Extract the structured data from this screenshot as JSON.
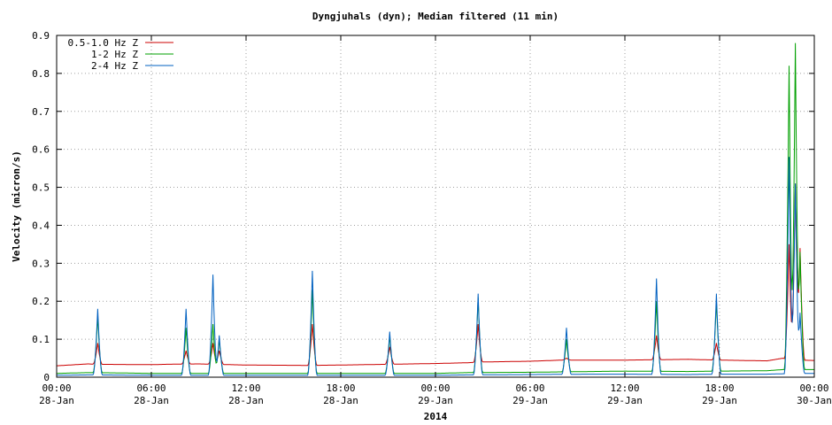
{
  "chart_data": {
    "type": "line",
    "title": "Dyngjuhals (dyn); Median filtered (11 min)",
    "xlabel": "2014",
    "ylabel": "Velocity (micron/s)",
    "ylim": [
      0,
      0.9
    ],
    "y_ticks": [
      "0",
      "0.1",
      "0.2",
      "0.3",
      "0.4",
      "0.5",
      "0.6",
      "0.7",
      "0.8",
      "0.9"
    ],
    "x_ticks": [
      {
        "hour": 0,
        "time": "00:00",
        "date": "28-Jan"
      },
      {
        "hour": 6,
        "time": "06:00",
        "date": "28-Jan"
      },
      {
        "hour": 12,
        "time": "12:00",
        "date": "28-Jan"
      },
      {
        "hour": 18,
        "time": "18:00",
        "date": "28-Jan"
      },
      {
        "hour": 24,
        "time": "00:00",
        "date": "29-Jan"
      },
      {
        "hour": 30,
        "time": "06:00",
        "date": "29-Jan"
      },
      {
        "hour": 36,
        "time": "12:00",
        "date": "29-Jan"
      },
      {
        "hour": 42,
        "time": "18:00",
        "date": "29-Jan"
      },
      {
        "hour": 48,
        "time": "00:00",
        "date": "30-Jan"
      }
    ],
    "grid": true,
    "legend_position": "top-left",
    "series": [
      {
        "name": "0.5-1.0 Hz Z",
        "color": "#cc0000",
        "points": [
          [
            0,
            0.03
          ],
          [
            2,
            0.035
          ],
          [
            2.5,
            0.034
          ],
          [
            6,
            0.033
          ],
          [
            7,
            0.034
          ],
          [
            9,
            0.035
          ],
          [
            12,
            0.032
          ],
          [
            16,
            0.031
          ],
          [
            18,
            0.032
          ],
          [
            21,
            0.034
          ],
          [
            24,
            0.036
          ],
          [
            26,
            0.038
          ],
          [
            27,
            0.04
          ],
          [
            30,
            0.042
          ],
          [
            32,
            0.045
          ],
          [
            36,
            0.045
          ],
          [
            40,
            0.047
          ],
          [
            42,
            0.045
          ],
          [
            45,
            0.043
          ],
          [
            46,
            0.05
          ],
          [
            47,
            0.045
          ],
          [
            48,
            0.044
          ]
        ]
      },
      {
        "name": "1-2 Hz Z",
        "color": "#00a000",
        "points": [
          [
            0,
            0.01
          ],
          [
            2,
            0.012
          ],
          [
            2.5,
            0.012
          ],
          [
            6,
            0.01
          ],
          [
            12,
            0.01
          ],
          [
            18,
            0.01
          ],
          [
            24,
            0.01
          ],
          [
            26,
            0.012
          ],
          [
            30,
            0.013
          ],
          [
            34,
            0.015
          ],
          [
            36,
            0.016
          ],
          [
            40,
            0.015
          ],
          [
            42,
            0.016
          ],
          [
            45,
            0.017
          ],
          [
            46,
            0.02
          ],
          [
            47,
            0.02
          ],
          [
            48,
            0.02
          ]
        ]
      },
      {
        "name": "2-4 Hz Z",
        "color": "#0060c0",
        "points": [
          [
            0,
            0.005
          ],
          [
            2,
            0.006
          ],
          [
            2.5,
            0.006
          ],
          [
            6,
            0.005
          ],
          [
            12,
            0.005
          ],
          [
            18,
            0.005
          ],
          [
            24,
            0.005
          ],
          [
            26,
            0.006
          ],
          [
            30,
            0.007
          ],
          [
            34,
            0.008
          ],
          [
            36,
            0.008
          ],
          [
            40,
            0.007
          ],
          [
            42,
            0.008
          ],
          [
            45,
            0.008
          ],
          [
            46,
            0.009
          ],
          [
            47,
            0.01
          ],
          [
            48,
            0.01
          ]
        ]
      }
    ],
    "spikes": [
      {
        "hour": 2.6,
        "red": 0.09,
        "green": 0.16,
        "blue": 0.18
      },
      {
        "hour": 8.2,
        "red": 0.07,
        "green": 0.13,
        "blue": 0.18
      },
      {
        "hour": 9.9,
        "red": 0.09,
        "green": 0.14,
        "blue": 0.27
      },
      {
        "hour": 10.3,
        "red": 0.07,
        "green": 0.1,
        "blue": 0.11
      },
      {
        "hour": 16.2,
        "red": 0.14,
        "green": 0.23,
        "blue": 0.28
      },
      {
        "hour": 21.1,
        "red": 0.08,
        "green": 0.11,
        "blue": 0.12
      },
      {
        "hour": 26.7,
        "red": 0.14,
        "green": 0.21,
        "blue": 0.22
      },
      {
        "hour": 32.3,
        "red": 0.05,
        "green": 0.1,
        "blue": 0.13
      },
      {
        "hour": 38.0,
        "red": 0.11,
        "green": 0.2,
        "blue": 0.26
      },
      {
        "hour": 41.8,
        "red": 0.09,
        "green": 0.2,
        "blue": 0.22
      },
      {
        "hour": 46.4,
        "red": 0.35,
        "green": 0.82,
        "blue": 0.58
      },
      {
        "hour": 46.8,
        "red": 0.51,
        "green": 0.88,
        "blue": 0.51
      },
      {
        "hour": 47.1,
        "red": 0.34,
        "green": 0.33,
        "blue": 0.17
      }
    ]
  }
}
